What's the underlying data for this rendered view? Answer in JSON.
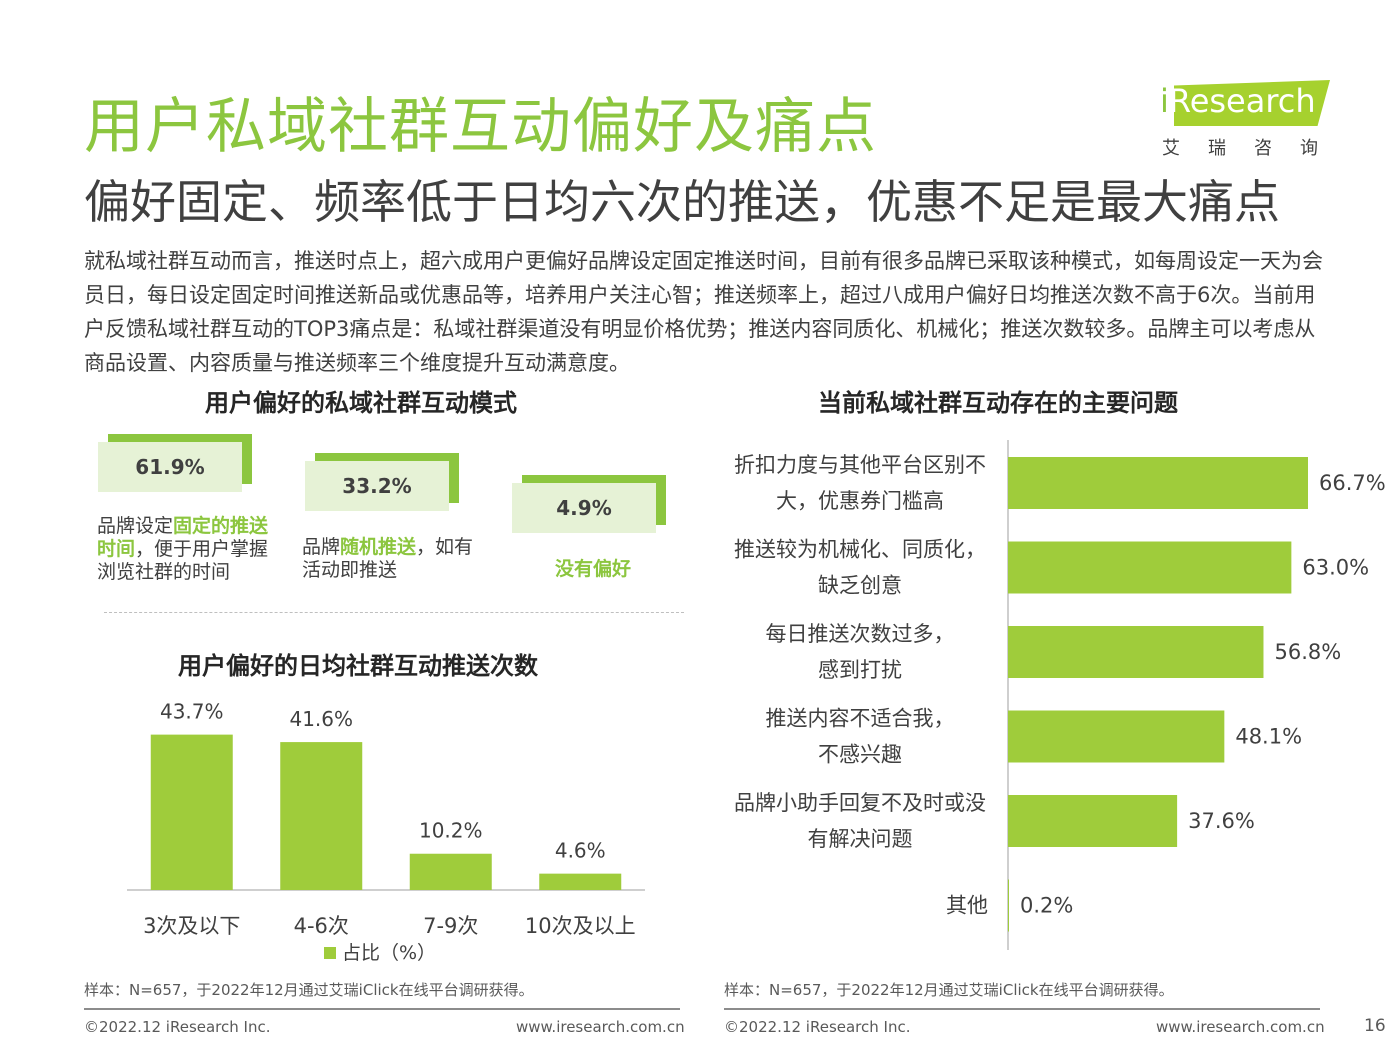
{
  "header": {
    "title": "用户私域社群互动偏好及痛点",
    "subtitle": "偏好固定、频率低于日均六次的推送，优惠不足是最大痛点",
    "intro": "就私域社群互动而言，推送时点上，超六成用户更偏好品牌设定固定推送时间，目前有很多品牌已采取该种模式，如每周设定一天为会员日，每日设定固定时间推送新品或优惠品等，培养用户关注心智；推送频率上，超过八成用户偏好日均推送次数不高于6次。当前用户反馈私域社群互动的TOP3痛点是：私域社群渠道没有明显价格优势；推送内容同质化、机械化；推送次数较多。品牌主可以考虑从商品设置、内容质量与推送频率三个维度提升互动满意度。"
  },
  "logo": {
    "brand_i": "i",
    "brand_rest": "Research",
    "cn": "艾瑞咨询"
  },
  "modes": {
    "title": "用户偏好的私域社群互动模式",
    "items": [
      {
        "value": "61.9%",
        "pre": "品牌设定",
        "highlight": "固定的推送时间",
        "post": "，便于用户掌握浏览社群的时间"
      },
      {
        "value": "33.2%",
        "pre": "品牌",
        "highlight": "随机推送",
        "post": "，如有活动即推送"
      },
      {
        "value": "4.9%",
        "pre": "",
        "highlight": "没有偏好",
        "post": ""
      }
    ]
  },
  "chart_data": [
    {
      "type": "bar",
      "title": "用户偏好的日均社群互动推送次数",
      "categories": [
        "3次及以下",
        "4-6次",
        "7-9次",
        "10次及以上"
      ],
      "series": [
        {
          "name": "占比（%）",
          "values": [
            43.7,
            41.6,
            10.2,
            4.6
          ]
        }
      ],
      "value_labels": [
        "43.7%",
        "41.6%",
        "10.2%",
        "4.6%"
      ],
      "ylim": [
        0,
        45
      ],
      "grid": false,
      "legend": "bottom",
      "color": "#9fcc3b"
    },
    {
      "type": "bar",
      "orientation": "horizontal",
      "title": "当前私域社群互动存在的主要问题",
      "categories": [
        [
          "折扣力度与其他平台区别不",
          "大，优惠券门槛高"
        ],
        [
          "推送较为机械化、同质化，",
          "缺乏创意"
        ],
        [
          "每日推送次数过多，",
          "感到打扰"
        ],
        [
          "推送内容不适合我，",
          "不感兴趣"
        ],
        [
          "品牌小助手回复不及时或没",
          "有解决问题"
        ],
        [
          "其他"
        ]
      ],
      "values": [
        66.7,
        63.0,
        56.8,
        48.1,
        37.6,
        0.2
      ],
      "value_labels": [
        "66.7%",
        "63.0%",
        "56.8%",
        "48.1%",
        "37.6%",
        "0.2%"
      ],
      "xlim": [
        0,
        100
      ],
      "grid": false,
      "color": "#9fcc3b"
    }
  ],
  "footer": {
    "note_left": "样本：N=657，于2022年12月通过艾瑞iClick在线平台调研获得。",
    "note_right": "样本：N=657，于2022年12月通过艾瑞iClick在线平台调研获得。",
    "copyright_left": "©2022.12 iResearch Inc.",
    "url_left": "www.iresearch.com.cn",
    "copyright_right": "©2022.12 iResearch Inc.",
    "url_right": "www.iresearch.com.cn",
    "page": "16"
  }
}
